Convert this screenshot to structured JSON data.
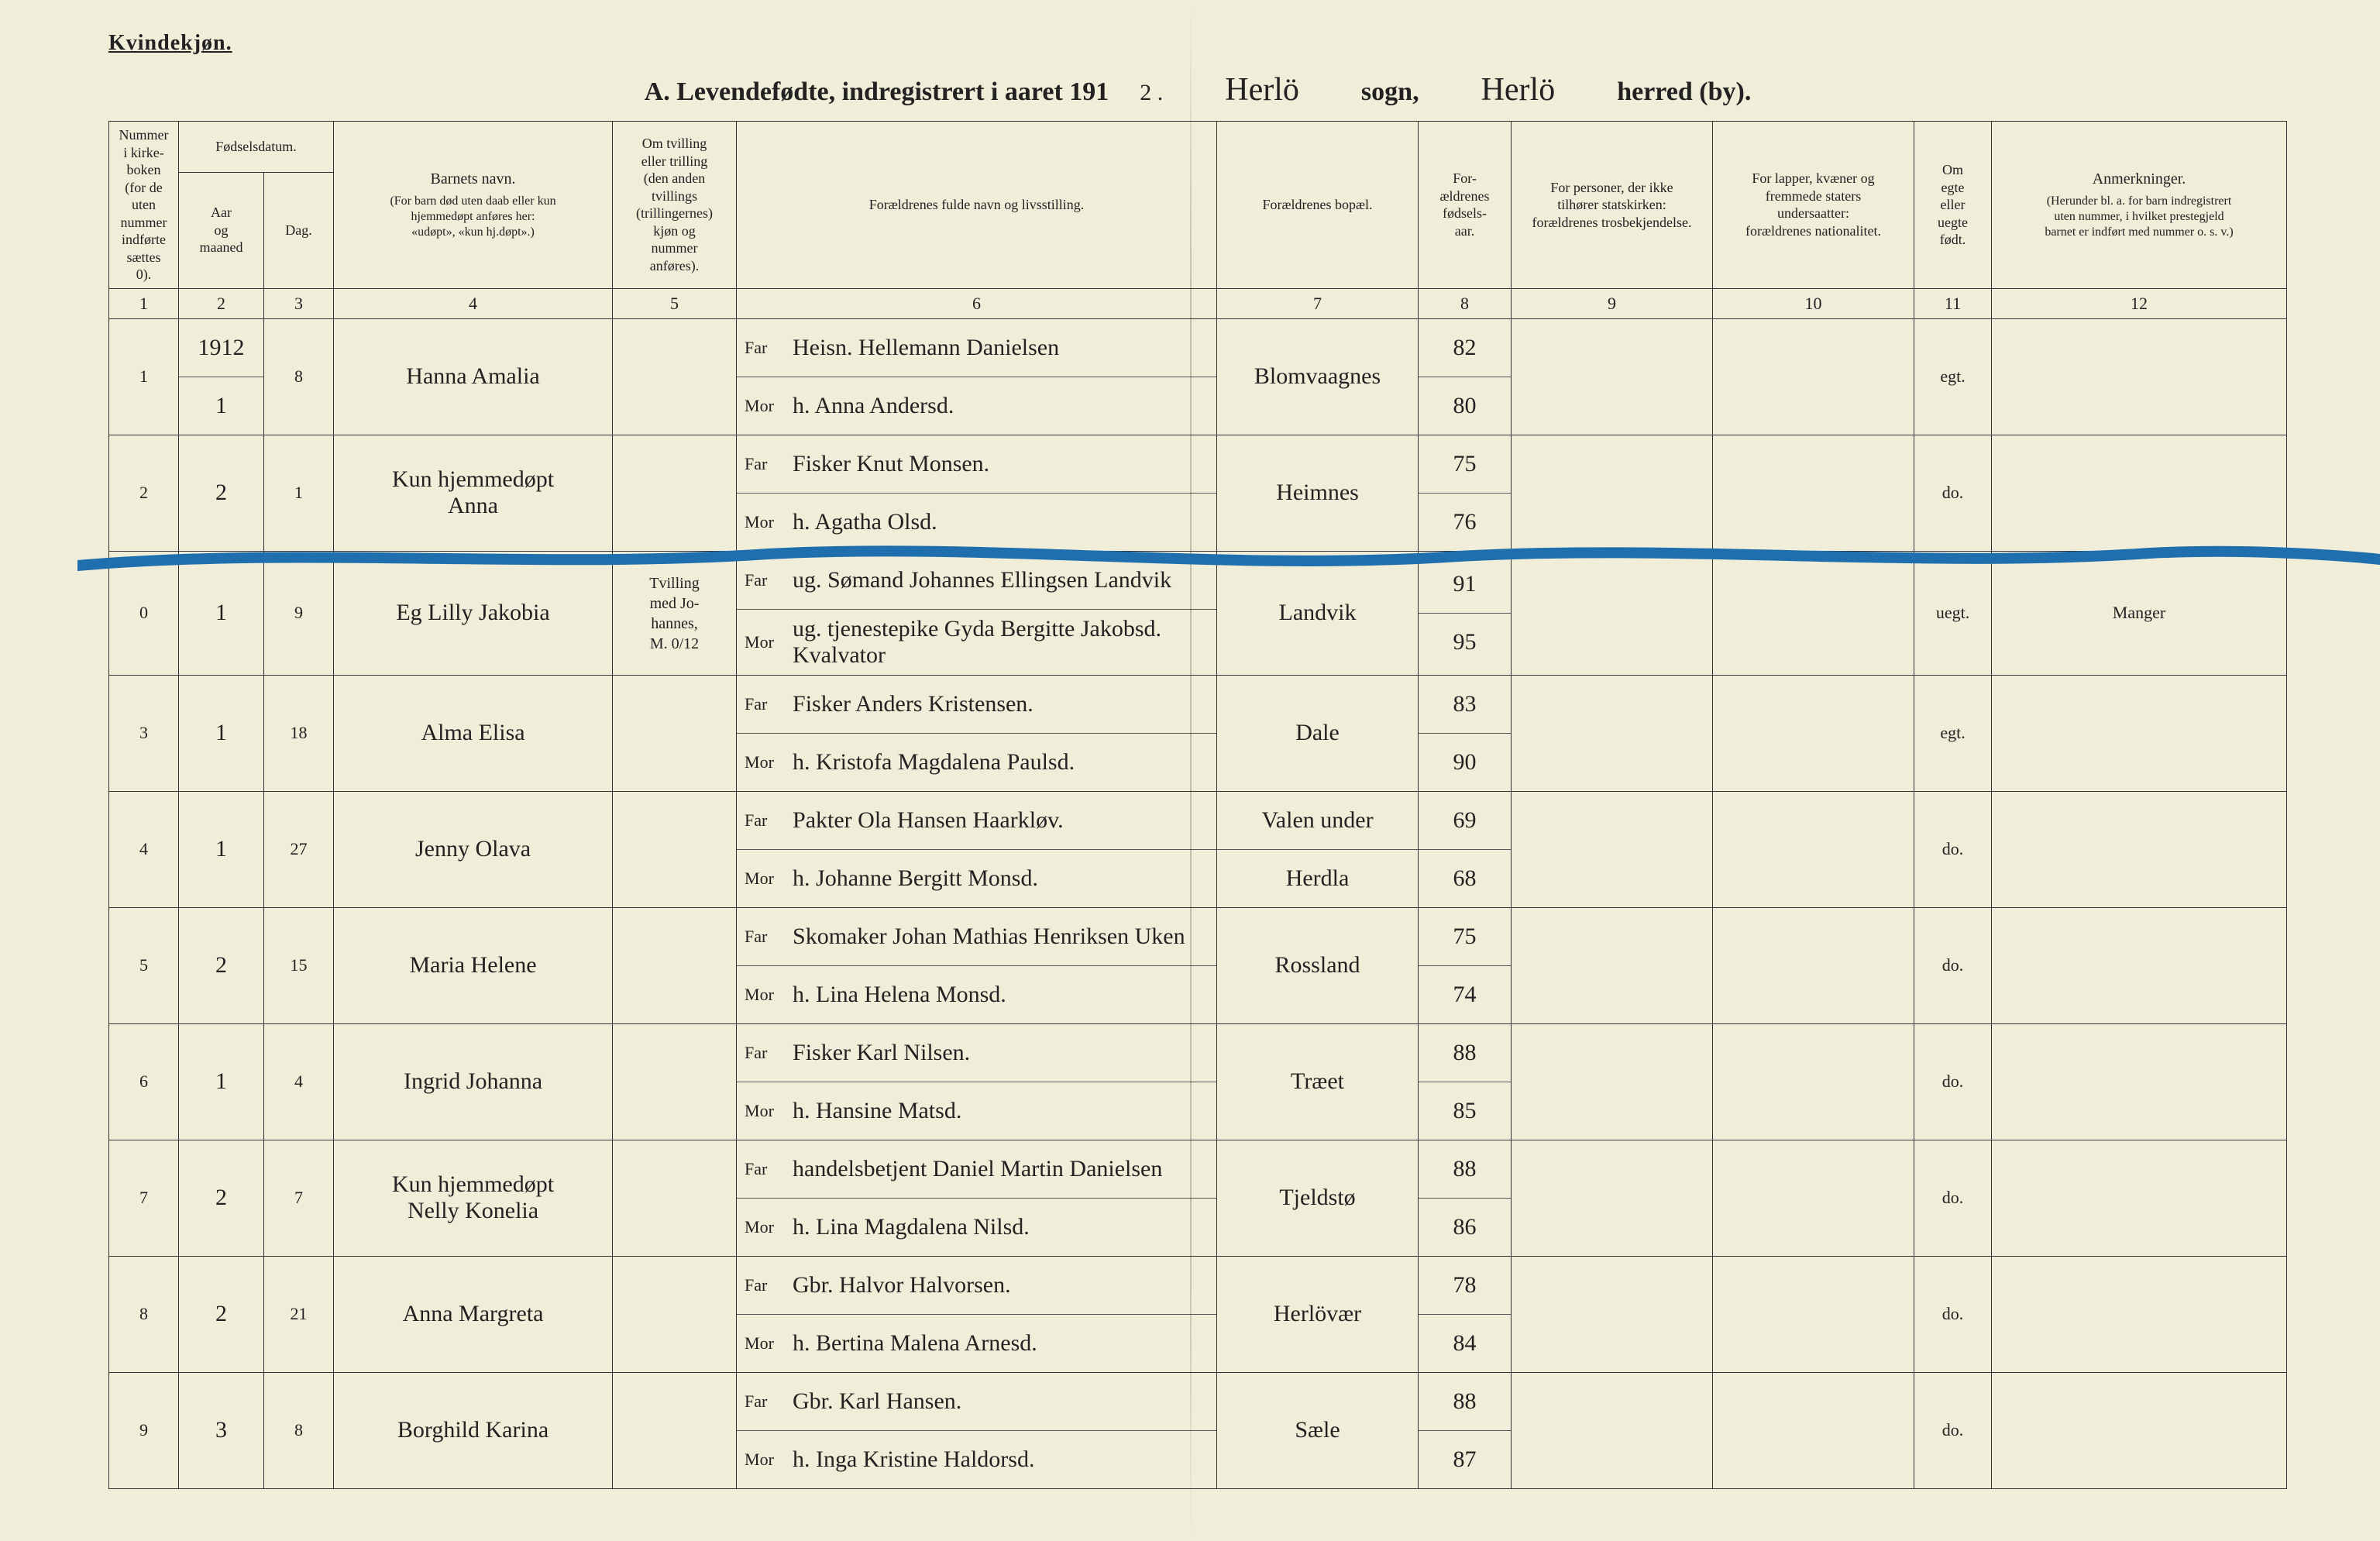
{
  "page": {
    "background": "#f0edd8",
    "ink": "#222222",
    "blue_stroke_color": "#1f6fae"
  },
  "header": {
    "gender": "Kvindekjøn.",
    "title_prefix": "A.  Levendefødte, indregistrert i aaret 191",
    "year_digit": "2 .",
    "sogn_hand": "Herlö",
    "sogn_label": "sogn,",
    "herred_hand": "Herlö",
    "herred_label": "herred (by)."
  },
  "columns": {
    "c1": "Nummer\ni kirke-\nboken\n(for de\nuten\nnummer\nindførte\nsættes\n0).",
    "c2_top": "Fødselsdatum.",
    "c2a": "Aar\nog\nmaaned",
    "c2b": "Dag.",
    "c4_top": "Barnets navn.",
    "c4_sub": "(For barn død uten daab eller kun\nhjemmedøpt anføres her:\n«udøpt», «kun hj.døpt».)",
    "c5": "Om tvilling\neller trilling\n(den anden\ntvillings\n(trillingernes)\nkjøn og\nnummer\nanføres).",
    "c6": "Forældrenes fulde navn og livsstilling.",
    "c7": "Forældrenes bopæl.",
    "c8": "For-\nældrenes\nfødsels-\naar.",
    "c9": "For personer, der ikke\ntilhører statskirken:\nforældrenes trosbekjendelse.",
    "c10": "For lapper, kvæner og\nfremmede staters\nundersaatter:\nforældrenes nationalitet.",
    "c11": "Om\negte\neller\nuegte\nfødt.",
    "c12_top": "Anmerkninger.",
    "c12_sub": "(Herunder bl. a. for barn indregistrert\nuten nummer, i hvilket prestegjeld\nbarnet er indført med nummer o. s. v.)",
    "numbers": [
      "1",
      "2",
      "3",
      "4",
      "5",
      "6",
      "7",
      "8",
      "9",
      "10",
      "11",
      "12"
    ],
    "far": "Far",
    "mor": "Mor"
  },
  "rows": [
    {
      "num": "1",
      "aar_top": "1912",
      "aar": "1",
      "dag": "8",
      "name": "Hanna Amalia",
      "twin": "",
      "far": "Heisn. Hellemann Danielsen",
      "mor": "h. Anna Andersd.",
      "bopel": "Blomvaagnes",
      "fy_far": "82",
      "fy_mor": "80",
      "c9": "",
      "c10": "",
      "egte": "egt.",
      "anm": ""
    },
    {
      "num": "2",
      "aar": "2",
      "dag": "1",
      "name_top": "Kun hjemmedøpt",
      "name": "Anna",
      "twin": "",
      "far": "Fisker Knut Monsen.",
      "mor": "h. Agatha Olsd.",
      "bopel": "Heimnes",
      "fy_far": "75",
      "fy_mor": "76",
      "c9": "",
      "c10": "",
      "egte": "do.",
      "anm": ""
    },
    {
      "num": "0",
      "aar": "1",
      "dag": "9",
      "name": "Eg Lilly Jakobia",
      "twin": "Tvilling\nmed Jo-\nhannes,\nM. 0/12",
      "far": "ug. Sømand Johannes Ellingsen Landvik",
      "mor": "ug. tjenestepike Gyda Bergitte Jakobsd.\nKvalvator",
      "bopel": "Landvik",
      "fy_far": "91",
      "fy_mor": "95",
      "c9": "",
      "c10": "",
      "egte": "uegt.",
      "anm": "Manger"
    },
    {
      "num": "3",
      "aar": "1",
      "dag": "18",
      "name": "Alma Elisa",
      "twin": "",
      "far": "Fisker Anders Kristensen.",
      "mor": "h. Kristofa Magdalena Paulsd.",
      "bopel": "Dale",
      "fy_far": "83",
      "fy_mor": "90",
      "c9": "",
      "c10": "",
      "egte": "egt.",
      "anm": ""
    },
    {
      "num": "4",
      "aar": "1",
      "dag": "27",
      "name": "Jenny Olava",
      "twin": "",
      "far": "Pakter Ola Hansen Haarkløv.",
      "mor": "h. Johanne Bergitt Monsd.",
      "bopel_top": "Valen under",
      "bopel": "Herdla",
      "fy_far": "69",
      "fy_mor": "68",
      "c9": "",
      "c10": "",
      "egte": "do.",
      "anm": ""
    },
    {
      "num": "5",
      "aar": "2",
      "dag": "15",
      "name": "Maria Helene",
      "twin": "",
      "far": "Skomaker Johan Mathias Henriksen Uken",
      "mor": "h. Lina Helena Monsd.",
      "bopel": "Rossland",
      "fy_far": "75",
      "fy_mor": "74",
      "c9": "",
      "c10": "",
      "egte": "do.",
      "anm": ""
    },
    {
      "num": "6",
      "aar": "1",
      "dag": "4",
      "name": "Ingrid Johanna",
      "twin": "",
      "far": "Fisker Karl Nilsen.",
      "mor": "h. Hansine Matsd.",
      "bopel": "Træet",
      "fy_far": "88",
      "fy_mor": "85",
      "c9": "",
      "c10": "",
      "egte": "do.",
      "anm": ""
    },
    {
      "num": "7",
      "aar": "2",
      "dag": "7",
      "name_top": "Kun hjemmedøpt",
      "name": "Nelly Konelia",
      "twin": "",
      "far": "handelsbetjent Daniel Martin Danielsen",
      "mor": "h. Lina Magdalena Nilsd.",
      "bopel": "Tjeldstø",
      "fy_far": "88",
      "fy_mor": "86",
      "c9": "",
      "c10": "",
      "egte": "do.",
      "anm": ""
    },
    {
      "num": "8",
      "aar": "2",
      "dag": "21",
      "name": "Anna Margreta",
      "twin": "",
      "far": "Gbr. Halvor Halvorsen.",
      "mor": "h. Bertina Malena Arnesd.",
      "bopel": "Herlövær",
      "fy_far": "78",
      "fy_mor": "84",
      "c9": "",
      "c10": "",
      "egte": "do.",
      "anm": ""
    },
    {
      "num": "9",
      "aar": "3",
      "dag": "8",
      "name": "Borghild Karina",
      "twin": "",
      "far": "Gbr. Karl Hansen.",
      "mor": "h. Inga Kristine Haldorsd.",
      "bopel": "Sæle",
      "fy_far": "88",
      "fy_mor": "87",
      "c9": "",
      "c10": "",
      "egte": "do.",
      "anm": ""
    }
  ]
}
